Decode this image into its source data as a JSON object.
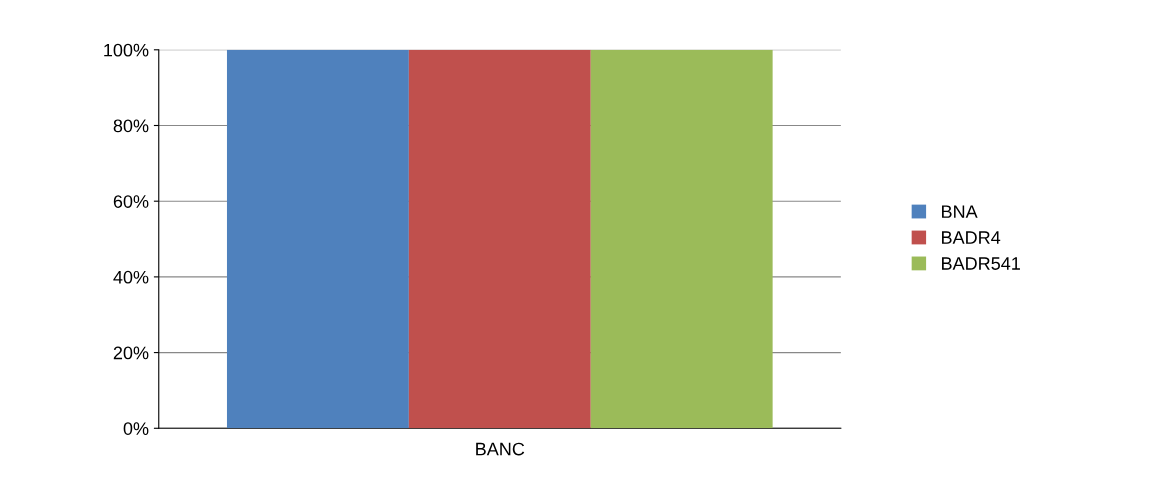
{
  "chart_data": {
    "type": "bar",
    "categories": [
      "BANC"
    ],
    "series": [
      {
        "name": "BNA",
        "color": "#4f81bd",
        "values": [
          100
        ]
      },
      {
        "name": "BADR4",
        "color": "#c0504d",
        "values": [
          100
        ]
      },
      {
        "name": "BADR541",
        "color": "#9bbb59",
        "values": [
          100
        ]
      }
    ],
    "ylim": [
      0,
      100
    ],
    "yticks": [
      {
        "value": 0,
        "label": "0%"
      },
      {
        "value": 20,
        "label": "20%"
      },
      {
        "value": 40,
        "label": "40%"
      },
      {
        "value": 60,
        "label": "60%"
      },
      {
        "value": 80,
        "label": "80%"
      },
      {
        "value": 100,
        "label": "100%"
      }
    ],
    "grid": "y",
    "legend": "right"
  }
}
